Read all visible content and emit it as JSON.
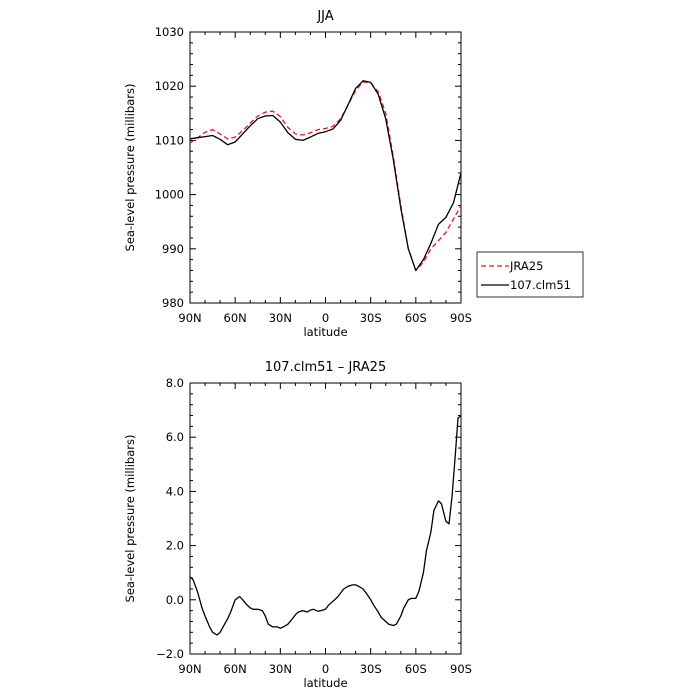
{
  "chart_data": [
    {
      "type": "line",
      "title": "JJA",
      "xlabel": "latitude",
      "ylabel": "Sea-level pressure (millibars)",
      "xlim": [
        90,
        -90
      ],
      "ylim": [
        980,
        1030
      ],
      "x_ticks": [
        "90N",
        "60N",
        "30N",
        "0",
        "30S",
        "60S",
        "90S"
      ],
      "y_ticks": [
        "980",
        "990",
        "1000",
        "1010",
        "1020",
        "1030"
      ],
      "legend": "right",
      "grid": false,
      "series": [
        {
          "name": "JRA25",
          "color": "#e41a1c",
          "dash": "dashed",
          "x": [
            90,
            85,
            80,
            75,
            70,
            65,
            60,
            55,
            50,
            45,
            40,
            35,
            30,
            25,
            20,
            15,
            10,
            5,
            0,
            -5,
            -10,
            -15,
            -20,
            -25,
            -30,
            -35,
            -40,
            -45,
            -50,
            -55,
            -60,
            -65,
            -70,
            -75,
            -80,
            -85,
            -90
          ],
          "y": [
            1009.5,
            1010.5,
            1011.5,
            1012.0,
            1011.2,
            1010.3,
            1010.6,
            1011.8,
            1013.2,
            1014.5,
            1015.2,
            1015.4,
            1014.4,
            1012.4,
            1011.2,
            1011.0,
            1011.4,
            1012.0,
            1012.2,
            1012.6,
            1014.0,
            1016.5,
            1019.2,
            1020.8,
            1020.6,
            1019.0,
            1015.0,
            1007.0,
            998.0,
            990.0,
            986.0,
            987.5,
            990.0,
            991.5,
            993.0,
            995.5,
            998.0
          ]
        },
        {
          "name": "107.clm51",
          "color": "#000000",
          "dash": "solid",
          "x": [
            90,
            85,
            80,
            75,
            70,
            65,
            60,
            55,
            50,
            45,
            40,
            35,
            30,
            25,
            20,
            15,
            10,
            5,
            0,
            -5,
            -10,
            -15,
            -20,
            -25,
            -30,
            -35,
            -40,
            -45,
            -50,
            -55,
            -60,
            -65,
            -70,
            -75,
            -80,
            -85,
            -90
          ],
          "y": [
            1010.3,
            1010.5,
            1010.7,
            1010.9,
            1010.2,
            1009.2,
            1009.7,
            1011.2,
            1012.7,
            1014.0,
            1014.5,
            1014.6,
            1013.4,
            1011.4,
            1010.2,
            1010.0,
            1010.6,
            1011.3,
            1011.6,
            1012.1,
            1013.7,
            1016.6,
            1019.6,
            1021.0,
            1020.7,
            1018.5,
            1014.0,
            1006.5,
            997.5,
            990.0,
            986.0,
            988.0,
            991.0,
            994.5,
            995.8,
            998.5,
            1004.0
          ]
        }
      ]
    },
    {
      "type": "line",
      "title": "107.clm51 – JRA25",
      "xlabel": "latitude",
      "ylabel": "Sea-level pressure (millibars)",
      "xlim": [
        90,
        -90
      ],
      "ylim": [
        -2.0,
        8.0
      ],
      "x_ticks": [
        "90N",
        "60N",
        "30N",
        "0",
        "30S",
        "60S",
        "90S"
      ],
      "y_ticks": [
        "−2.0",
        "0.0",
        "2.0",
        "4.0",
        "6.0",
        "8.0"
      ],
      "grid": false,
      "series": [
        {
          "color": "#000000",
          "dash": "solid",
          "x": [
            90,
            88,
            85,
            82,
            80,
            77,
            75,
            72,
            70,
            67,
            65,
            63,
            60,
            57,
            55,
            52,
            50,
            48,
            45,
            42,
            40,
            38,
            35,
            32,
            30,
            28,
            25,
            22,
            20,
            18,
            15,
            12,
            10,
            8,
            5,
            3,
            0,
            -2,
            -5,
            -8,
            -10,
            -12,
            -15,
            -18,
            -20,
            -22,
            -25,
            -27,
            -30,
            -32,
            -35,
            -37,
            -40,
            -42,
            -45,
            -47,
            -50,
            -52,
            -55,
            -57,
            -60,
            -62,
            -65,
            -67,
            -70,
            -72,
            -75,
            -77,
            -80,
            -82,
            -84,
            -86,
            -88,
            -90
          ],
          "y": [
            0.85,
            0.75,
            0.3,
            -0.3,
            -0.6,
            -1.0,
            -1.2,
            -1.3,
            -1.2,
            -0.9,
            -0.7,
            -0.45,
            0.0,
            0.12,
            0.0,
            -0.2,
            -0.3,
            -0.35,
            -0.35,
            -0.4,
            -0.6,
            -0.9,
            -1.0,
            -1.0,
            -1.05,
            -1.0,
            -0.9,
            -0.7,
            -0.55,
            -0.45,
            -0.4,
            -0.45,
            -0.38,
            -0.35,
            -0.42,
            -0.4,
            -0.35,
            -0.2,
            -0.05,
            0.1,
            0.25,
            0.4,
            0.5,
            0.55,
            0.55,
            0.5,
            0.4,
            0.25,
            0.0,
            -0.2,
            -0.45,
            -0.65,
            -0.8,
            -0.9,
            -0.95,
            -0.9,
            -0.6,
            -0.3,
            0.0,
            0.05,
            0.05,
            0.3,
            1.0,
            1.8,
            2.5,
            3.3,
            3.65,
            3.55,
            2.9,
            2.8,
            3.8,
            5.2,
            6.7,
            6.8
          ]
        }
      ]
    }
  ]
}
